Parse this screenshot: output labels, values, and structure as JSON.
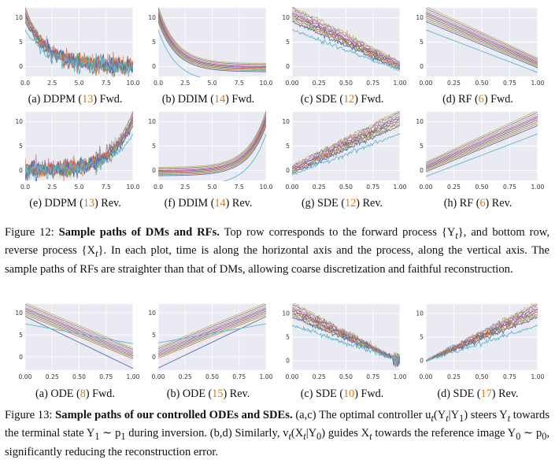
{
  "figure12": {
    "subfigures": [
      {
        "id": "a",
        "label": "(a) DDPM (",
        "ref": "13",
        "suffix": ") Fwd."
      },
      {
        "id": "b",
        "label": "(b) DDIM (",
        "ref": "14",
        "suffix": ") Fwd."
      },
      {
        "id": "c",
        "label": "(c) SDE (",
        "ref": "12",
        "suffix": ") Fwd."
      },
      {
        "id": "d",
        "label": "(d) RF (",
        "ref": "6",
        "suffix": ") Fwd."
      },
      {
        "id": "e",
        "label": "(e) DDPM (",
        "ref": "13",
        "suffix": ") Rev."
      },
      {
        "id": "f",
        "label": "(f) DDIM (",
        "ref": "14",
        "suffix": ") Rev."
      },
      {
        "id": "g",
        "label": "(g) SDE (",
        "ref": "12",
        "suffix": ") Rev."
      },
      {
        "id": "h",
        "label": "(h) RF (",
        "ref": "6",
        "suffix": ") Rev."
      }
    ],
    "caption": {
      "number": "Figure 12:",
      "title": "Sample paths of DMs and RFs.",
      "body1": " Top row corresponds to the forward process {Y",
      "sub1": "t",
      "body2": "}, and bottom row, reverse process {X",
      "sub2": "t",
      "body3": "}. In each plot, time is along the horizontal axis and the process, along the vertical axis. The sample paths of RFs are straighter than that of DMs, allowing coarse discretization and faithful reconstruction."
    }
  },
  "figure13": {
    "subfigures": [
      {
        "id": "a",
        "label": "(a) ODE (",
        "ref": "8",
        "suffix": ") Fwd."
      },
      {
        "id": "b",
        "label": "(b) ODE (",
        "ref": "15",
        "suffix": ") Rev."
      },
      {
        "id": "c",
        "label": "(c) SDE (",
        "ref": "10",
        "suffix": ") Fwd."
      },
      {
        "id": "d",
        "label": "(d) SDE (",
        "ref": "17",
        "suffix": ") Rev."
      }
    ],
    "caption": {
      "number": "Figure 13:",
      "title": "Sample paths of our controlled ODEs and SDEs.",
      "line1": " (a,c) The optimal controller u",
      "line1b": "(Y",
      "line1c": "|Y",
      "line1d": ") steers Y",
      "line1e": " towards the terminal state Y",
      "line1f": " ∼ p",
      "line1g": " during inversion. (b,d) Similarly, v",
      "line1h": "(X",
      "line1i": "|Y",
      "line1j": ")",
      "line2": "guides X",
      "line2b": " towards the reference image Y",
      "line2c": " ∼ p",
      "line2d": ", significantly reducing the reconstruction error."
    }
  },
  "chart_data": [
    {
      "id": "fig12a",
      "type": "line",
      "process": "ddpm-fwd",
      "xticks": [
        "0.0",
        "2.5",
        "5.0",
        "7.5",
        "10.0"
      ],
      "yticks": [
        "0",
        "5",
        "10"
      ],
      "xlim": [
        0,
        10
      ],
      "ylim": [
        -2,
        12
      ],
      "series_count": 10
    },
    {
      "id": "fig12b",
      "type": "line",
      "process": "ddim-fwd",
      "xticks": [
        "0.0",
        "2.5",
        "5.0",
        "7.5",
        "10.0"
      ],
      "yticks": [
        "0",
        "5",
        "10"
      ],
      "xlim": [
        0,
        10
      ],
      "ylim": [
        -2,
        12
      ],
      "series_count": 10
    },
    {
      "id": "fig12c",
      "type": "line",
      "process": "sde-fwd",
      "xticks": [
        "0.00",
        "0.25",
        "0.50",
        "0.75",
        "1.00"
      ],
      "yticks": [
        "0",
        "5",
        "10"
      ],
      "xlim": [
        0,
        1
      ],
      "ylim": [
        -2,
        12
      ],
      "series_count": 10
    },
    {
      "id": "fig12d",
      "type": "line",
      "process": "rf-fwd",
      "xticks": [
        "0.00",
        "0.25",
        "0.50",
        "0.75",
        "1.00"
      ],
      "yticks": [
        "0",
        "5",
        "10"
      ],
      "xlim": [
        0,
        1
      ],
      "ylim": [
        -2,
        12
      ],
      "series_count": 10
    },
    {
      "id": "fig12e",
      "type": "line",
      "process": "ddpm-rev",
      "xticks": [
        "0.0",
        "2.5",
        "5.0",
        "7.5",
        "10.0"
      ],
      "yticks": [
        "0",
        "5",
        "10"
      ],
      "xlim": [
        0,
        10
      ],
      "ylim": [
        -2,
        12
      ],
      "series_count": 10
    },
    {
      "id": "fig12f",
      "type": "line",
      "process": "ddim-rev",
      "xticks": [
        "0.0",
        "2.5",
        "5.0",
        "7.5",
        "10.0"
      ],
      "yticks": [
        "0",
        "5",
        "10"
      ],
      "xlim": [
        0,
        10
      ],
      "ylim": [
        -2,
        12
      ],
      "series_count": 10
    },
    {
      "id": "fig12g",
      "type": "line",
      "process": "sde-rev",
      "xticks": [
        "0.00",
        "0.25",
        "0.50",
        "0.75",
        "1.00"
      ],
      "yticks": [
        "0",
        "5",
        "10"
      ],
      "xlim": [
        0,
        1
      ],
      "ylim": [
        -2,
        12
      ],
      "series_count": 10
    },
    {
      "id": "fig12h",
      "type": "line",
      "process": "rf-rev",
      "xticks": [
        "0.00",
        "0.25",
        "0.50",
        "0.75",
        "1.00"
      ],
      "yticks": [
        "0",
        "5",
        "10"
      ],
      "xlim": [
        0,
        1
      ],
      "ylim": [
        -2,
        12
      ],
      "series_count": 10
    },
    {
      "id": "fig13a",
      "type": "line",
      "process": "ode-fwd",
      "xticks": [
        "0.00",
        "0.25",
        "0.50",
        "0.75",
        "1.00"
      ],
      "yticks": [
        "0",
        "5",
        "10"
      ],
      "xlim": [
        0,
        1
      ],
      "ylim": [
        -3,
        12
      ],
      "series_count": 10
    },
    {
      "id": "fig13b",
      "type": "line",
      "process": "ode-rev",
      "xticks": [
        "0.00",
        "0.25",
        "0.50",
        "0.75",
        "1.00"
      ],
      "yticks": [
        "0",
        "5",
        "10"
      ],
      "xlim": [
        0,
        1
      ],
      "ylim": [
        -3,
        12
      ],
      "series_count": 10
    },
    {
      "id": "fig13c",
      "type": "line",
      "process": "sde-fwd",
      "xticks": [
        "0.00",
        "0.25",
        "0.50",
        "0.75",
        "1.00"
      ],
      "yticks": [
        "0",
        "5",
        "10"
      ],
      "xlim": [
        0,
        1
      ],
      "ylim": [
        -2,
        12
      ],
      "series_count": 10
    },
    {
      "id": "fig13d",
      "type": "line",
      "process": "sde-rev",
      "xticks": [
        "0.00",
        "0.25",
        "0.50",
        "0.75",
        "1.00"
      ],
      "yticks": [
        "0",
        "5",
        "10"
      ],
      "xlim": [
        0,
        1
      ],
      "ylim": [
        -2,
        12
      ],
      "series_count": 10
    }
  ],
  "colors": {
    "plot_bg": "#eaeaf2",
    "grid": "#ffffff",
    "ref": "#d9780f",
    "palette": [
      "#4c72b0",
      "#dd8452",
      "#55a868",
      "#c44e52",
      "#8172b3",
      "#937860",
      "#da8bc3",
      "#8c8c8c",
      "#ccb974",
      "#64b5cd"
    ]
  }
}
